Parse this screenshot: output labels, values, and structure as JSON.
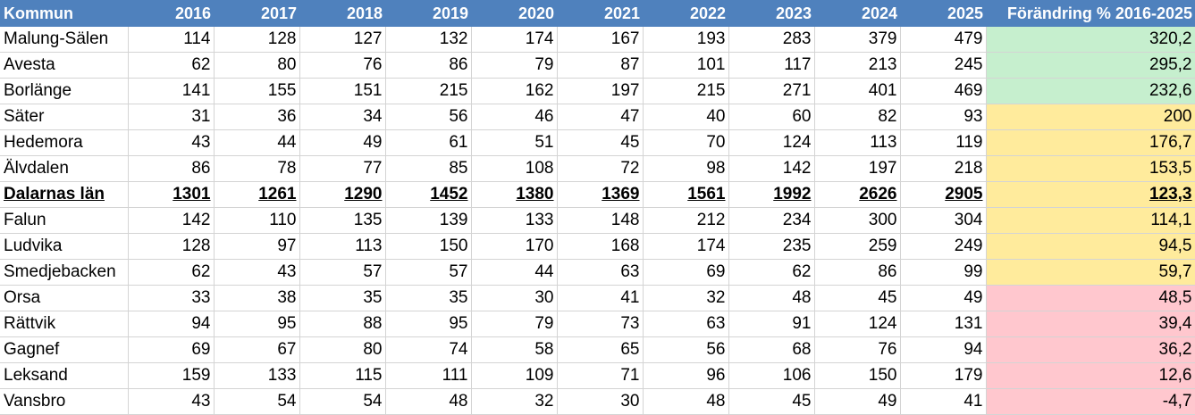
{
  "table": {
    "headers": [
      "Kommun",
      "2016",
      "2017",
      "2018",
      "2019",
      "2020",
      "2021",
      "2022",
      "2023",
      "2024",
      "2025",
      "Förändring % 2016-2025"
    ],
    "colors": {
      "green": "#c6efce",
      "yellow": "#ffeb9c",
      "red": "#ffc7ce",
      "header": "#4f81bd"
    },
    "rows": [
      {
        "kommun": "Malung-Sälen",
        "values": [
          "114",
          "128",
          "127",
          "132",
          "174",
          "167",
          "193",
          "283",
          "379",
          "479"
        ],
        "change": "320,2",
        "color": "green"
      },
      {
        "kommun": "Avesta",
        "values": [
          "62",
          "80",
          "76",
          "86",
          "79",
          "87",
          "101",
          "117",
          "213",
          "245"
        ],
        "change": "295,2",
        "color": "green"
      },
      {
        "kommun": "Borlänge",
        "values": [
          "141",
          "155",
          "151",
          "215",
          "162",
          "197",
          "215",
          "271",
          "401",
          "469"
        ],
        "change": "232,6",
        "color": "green"
      },
      {
        "kommun": "Säter",
        "values": [
          "31",
          "36",
          "34",
          "56",
          "46",
          "47",
          "40",
          "60",
          "82",
          "93"
        ],
        "change": "200",
        "color": "yellow"
      },
      {
        "kommun": "Hedemora",
        "values": [
          "43",
          "44",
          "49",
          "61",
          "51",
          "45",
          "70",
          "124",
          "113",
          "119"
        ],
        "change": "176,7",
        "color": "yellow"
      },
      {
        "kommun": "Älvdalen",
        "values": [
          "86",
          "78",
          "77",
          "85",
          "108",
          "72",
          "98",
          "142",
          "197",
          "218"
        ],
        "change": "153,5",
        "color": "yellow"
      },
      {
        "kommun": "Dalarnas län",
        "values": [
          "1301",
          "1261",
          "1290",
          "1452",
          "1380",
          "1369",
          "1561",
          "1992",
          "2626",
          "2905"
        ],
        "change": "123,3",
        "color": "yellow",
        "total": true
      },
      {
        "kommun": "Falun",
        "values": [
          "142",
          "110",
          "135",
          "139",
          "133",
          "148",
          "212",
          "234",
          "300",
          "304"
        ],
        "change": "114,1",
        "color": "yellow"
      },
      {
        "kommun": "Ludvika",
        "values": [
          "128",
          "97",
          "113",
          "150",
          "170",
          "168",
          "174",
          "235",
          "259",
          "249"
        ],
        "change": "94,5",
        "color": "yellow"
      },
      {
        "kommun": "Smedjebacken",
        "values": [
          "62",
          "43",
          "57",
          "57",
          "44",
          "63",
          "69",
          "62",
          "86",
          "99"
        ],
        "change": "59,7",
        "color": "yellow"
      },
      {
        "kommun": "Orsa",
        "values": [
          "33",
          "38",
          "35",
          "35",
          "30",
          "41",
          "32",
          "48",
          "45",
          "49"
        ],
        "change": "48,5",
        "color": "red"
      },
      {
        "kommun": "Rättvik",
        "values": [
          "94",
          "95",
          "88",
          "95",
          "79",
          "73",
          "63",
          "91",
          "124",
          "131"
        ],
        "change": "39,4",
        "color": "red"
      },
      {
        "kommun": "Gagnef",
        "values": [
          "69",
          "67",
          "80",
          "74",
          "58",
          "65",
          "56",
          "68",
          "76",
          "94"
        ],
        "change": "36,2",
        "color": "red"
      },
      {
        "kommun": "Leksand",
        "values": [
          "159",
          "133",
          "115",
          "111",
          "109",
          "71",
          "96",
          "106",
          "150",
          "179"
        ],
        "change": "12,6",
        "color": "red"
      },
      {
        "kommun": "Vansbro",
        "values": [
          "43",
          "54",
          "54",
          "48",
          "32",
          "30",
          "48",
          "45",
          "49",
          "41"
        ],
        "change": "-4,7",
        "color": "red"
      }
    ]
  }
}
